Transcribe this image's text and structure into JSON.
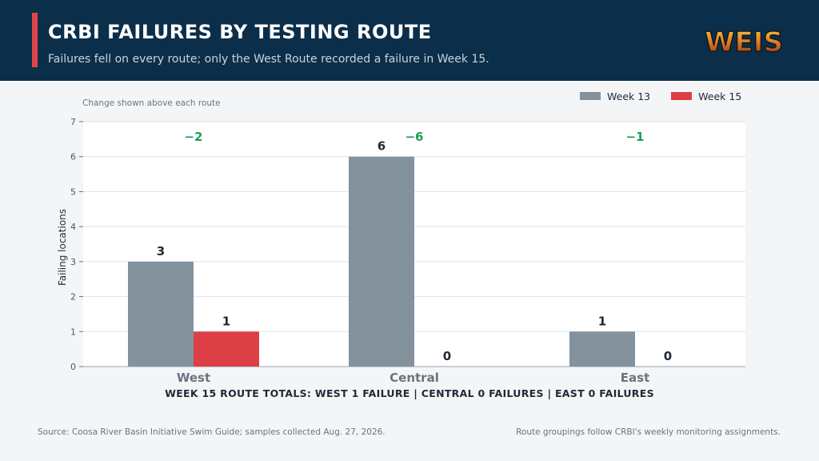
{
  "header": {
    "title": "CRBI FAILURES BY TESTING ROUTE",
    "subtitle": "Failures fell on every route; only the West Route recorded a failure in Week 15.",
    "logo_text": "WEIS"
  },
  "chart_note": "Change shown above each route",
  "totals_line": "WEEK 15 ROUTE TOTALS:  WEST 1 FAILURE  |  CENTRAL 0 FAILURES  |  EAST 0 FAILURES",
  "footer": {
    "source": "Source: Coosa River Basin Initiative Swim Guide; samples collected Aug. 27, 2026.",
    "note": "Route groupings follow CRBI's weekly monitoring assignments."
  },
  "colors": {
    "accent": "#e0454b",
    "header_bg": "#0b2f4a",
    "week13": "#84929e",
    "week15": "#dc4046",
    "change": "#1f9d55"
  },
  "chart_data": {
    "type": "bar",
    "categories": [
      "West",
      "Central",
      "East"
    ],
    "series": [
      {
        "name": "Week 13",
        "values": [
          3,
          6,
          1
        ]
      },
      {
        "name": "Week 15",
        "values": [
          1,
          0,
          0
        ]
      }
    ],
    "changes": [
      "−2",
      "−6",
      "−1"
    ],
    "title": "CRBI FAILURES BY TESTING ROUTE",
    "xlabel": "",
    "ylabel": "Failing locations",
    "ylim": [
      0,
      7
    ],
    "yticks": [
      0,
      1,
      2,
      3,
      4,
      5,
      6,
      7
    ],
    "grid": true,
    "legend": "top-right"
  }
}
